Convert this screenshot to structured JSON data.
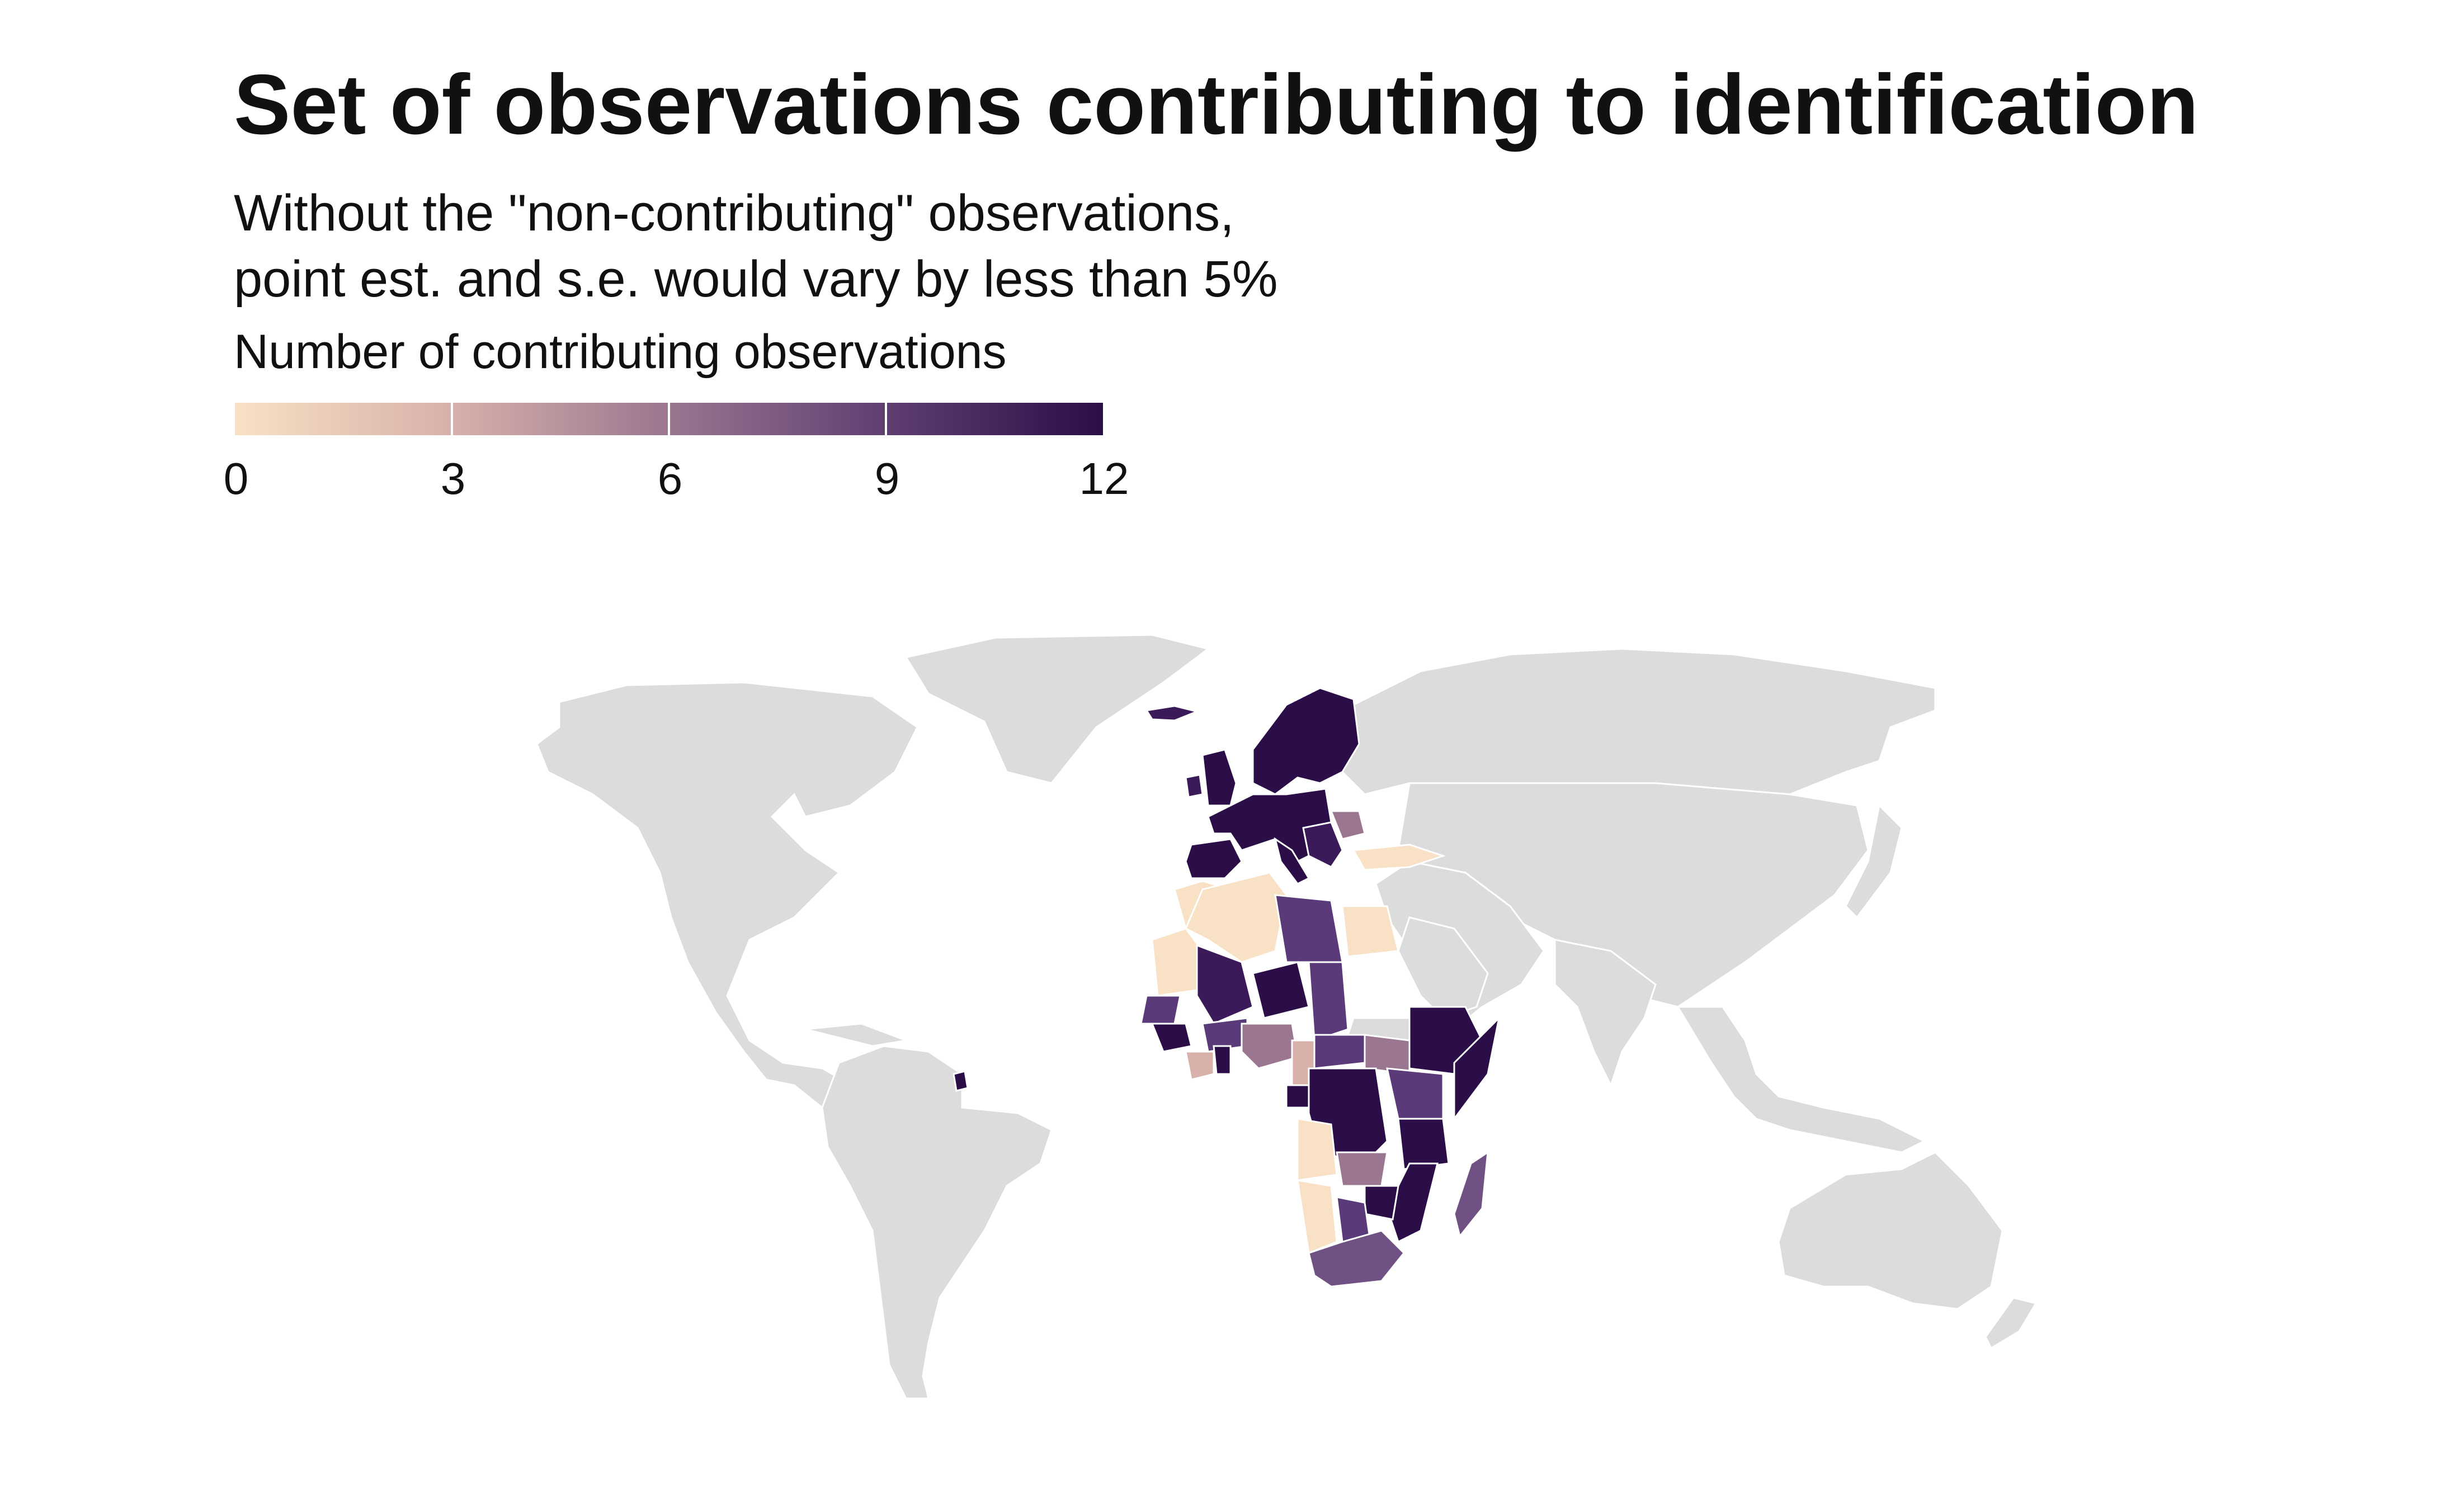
{
  "title": "Set of observations contributing to identification",
  "subtitle_lines": [
    "Without the \"non-contributing\" observations,",
    "point est. and s.e. would vary by less than 5%"
  ],
  "legend": {
    "title": "Number of contributing observations",
    "ticks": [
      "0",
      "3",
      "6",
      "9",
      "12"
    ],
    "min": 0,
    "max": 12,
    "color_low": "#f8e1c4",
    "color_high": "#2b0e48"
  },
  "colors": {
    "background": "#ffffff",
    "no_data": "#dcdcdc",
    "border": "#ffffff"
  }
}
